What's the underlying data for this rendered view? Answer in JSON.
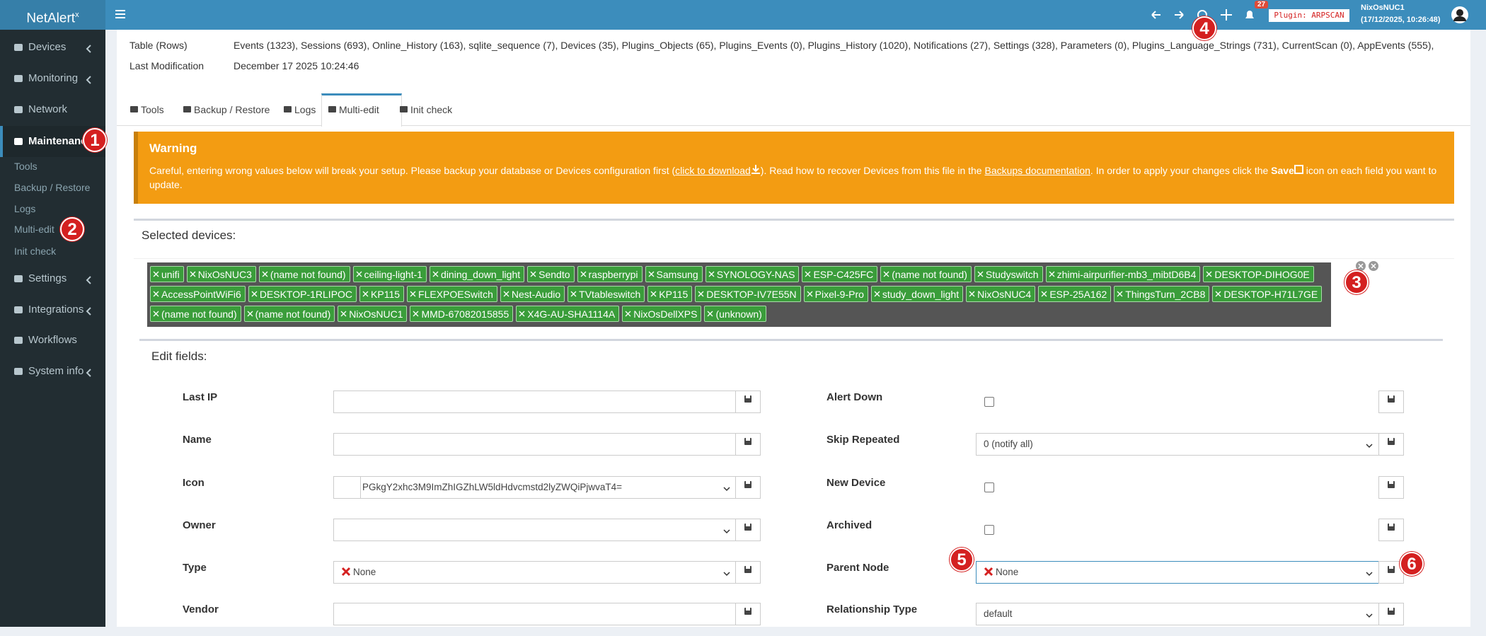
{
  "navbar": {
    "logo": "NetAlert",
    "logo_sup": "x",
    "notification_count": "27",
    "plugin": "Plugin: ARPSCAN",
    "host": "NixOsNUC1",
    "timestamp": "(17/12/2025, 10:26:48)"
  },
  "sidebar": {
    "items": [
      "Devices",
      "Monitoring",
      "Network",
      "Maintenance",
      "Settings",
      "Integrations",
      "Workflows",
      "System info"
    ],
    "subitems": [
      "Tools",
      "Backup / Restore",
      "Logs",
      "Multi-edit",
      "Init check"
    ]
  },
  "info": {
    "table_label": "Table (Rows)",
    "table_value": "Events (1323), Sessions (693), Online_History (163), sqlite_sequence (7), Devices (35), Plugins_Objects (65), Plugins_Events (0), Plugins_History (1020), Notifications (27), Settings (328), Parameters (0), Plugins_Language_Strings (731), CurrentScan (0), AppEvents (555),",
    "modified_label": "Last Modification",
    "modified_value": "December 17 2025 10:24:46"
  },
  "tabs": [
    "Tools",
    "Backup / Restore",
    "Logs",
    "Multi-edit",
    "Init check"
  ],
  "warning": {
    "title": "Warning",
    "text_1": "Careful, entering wrong values below will break your setup. Please backup your database or Devices configuration first (",
    "link_1": "click to download",
    "text_2": "). Read how to recover Devices from this file in the ",
    "link_2": "Backups documentation",
    "text_3": ". In order to apply your changes click the ",
    "bold": "Save",
    "text_4": " icon on each field you want to update."
  },
  "selected_devices": {
    "title": "Selected devices:",
    "rows": [
      [
        "unifi",
        "NixOsNUC3",
        "(name not found)",
        "ceiling-light-1",
        "dining_down_light",
        "Sendto",
        "raspberrypi",
        "Samsung",
        "SYNOLOGY-NAS",
        "ESP-C425FC",
        "(name not found)",
        "Studyswitch",
        "zhimi-airpurifier-mb3_mibtD6B4",
        "DESKTOP-DIHOG0E"
      ],
      [
        "AccessPointWiFi6",
        "DESKTOP-1RLIPOC",
        "KP115",
        "FLEXPOESwitch",
        "Nest-Audio",
        "TVtableswitch",
        "KP115",
        "DESKTOP-IV7E55N",
        "Pixel-9-Pro",
        "study_down_light",
        "NixOsNUC4",
        "ESP-25A162",
        "ThingsTurn_2CB8",
        "DESKTOP-H71L7GE"
      ],
      [
        "(name not found)",
        "(name not found)",
        "NixOsNUC1",
        "MMD-67082015855",
        "X4G-AU-SHA1114A",
        "NixOsDellXPS",
        "(unknown)"
      ]
    ]
  },
  "edit_fields": {
    "title": "Edit fields:",
    "left": [
      {
        "label": "Last IP",
        "kind": "text"
      },
      {
        "label": "Name",
        "kind": "text"
      },
      {
        "label": "Icon",
        "kind": "icon-select",
        "value": "PGkgY2xhc3M9ImZhIGZhLW5ldHdvcmstd2lyZWQiPjwvaT4="
      },
      {
        "label": "Owner",
        "kind": "select"
      },
      {
        "label": "Type",
        "kind": "select",
        "value": "None"
      },
      {
        "label": "Vendor",
        "kind": "text"
      }
    ],
    "right": [
      {
        "label": "Alert Down",
        "kind": "checkbox"
      },
      {
        "label": "Skip Repeated",
        "kind": "select",
        "value": "0 (notify all)"
      },
      {
        "label": "New Device",
        "kind": "checkbox"
      },
      {
        "label": "Archived",
        "kind": "checkbox"
      },
      {
        "label": "Parent Node",
        "kind": "select",
        "value": "None"
      },
      {
        "label": "Relationship Type",
        "kind": "select",
        "value": "default"
      }
    ]
  },
  "annotations": [
    "1",
    "2",
    "3",
    "4",
    "5",
    "6"
  ]
}
